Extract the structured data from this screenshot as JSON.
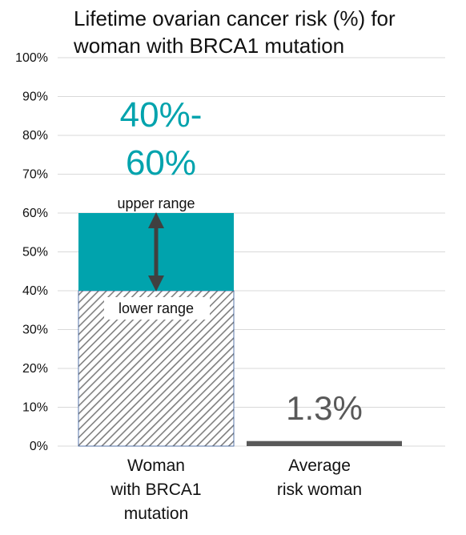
{
  "title_lines": [
    "Lifetime ovarian cancer risk (%) for",
    "woman with BRCA1 mutation"
  ],
  "colors": {
    "teal": "#00A3AD",
    "dark_gray": "#595959",
    "grid": "#D9D9D9",
    "hatch": "#7F7F7F",
    "arrow": "#404040"
  },
  "chart_data": {
    "type": "bar",
    "title": "Lifetime ovarian cancer risk (%) for woman with BRCA1 mutation",
    "categories": [
      [
        "Woman",
        "with BRCA1",
        "mutation"
      ],
      [
        "Average",
        "risk woman"
      ]
    ],
    "y_ticks": [
      0,
      10,
      20,
      30,
      40,
      50,
      60,
      70,
      80,
      90,
      100
    ],
    "y_tick_suffix": "%",
    "ylim": [
      0,
      100
    ],
    "grid": true,
    "bars": [
      {
        "category_index": 0,
        "lower": 40,
        "upper": 60,
        "lower_label": "lower range",
        "upper_label": "upper range",
        "value_label": [
          "40%-",
          "60%"
        ]
      },
      {
        "category_index": 1,
        "value": 1.3,
        "value_label": [
          "1.3%"
        ]
      }
    ]
  }
}
